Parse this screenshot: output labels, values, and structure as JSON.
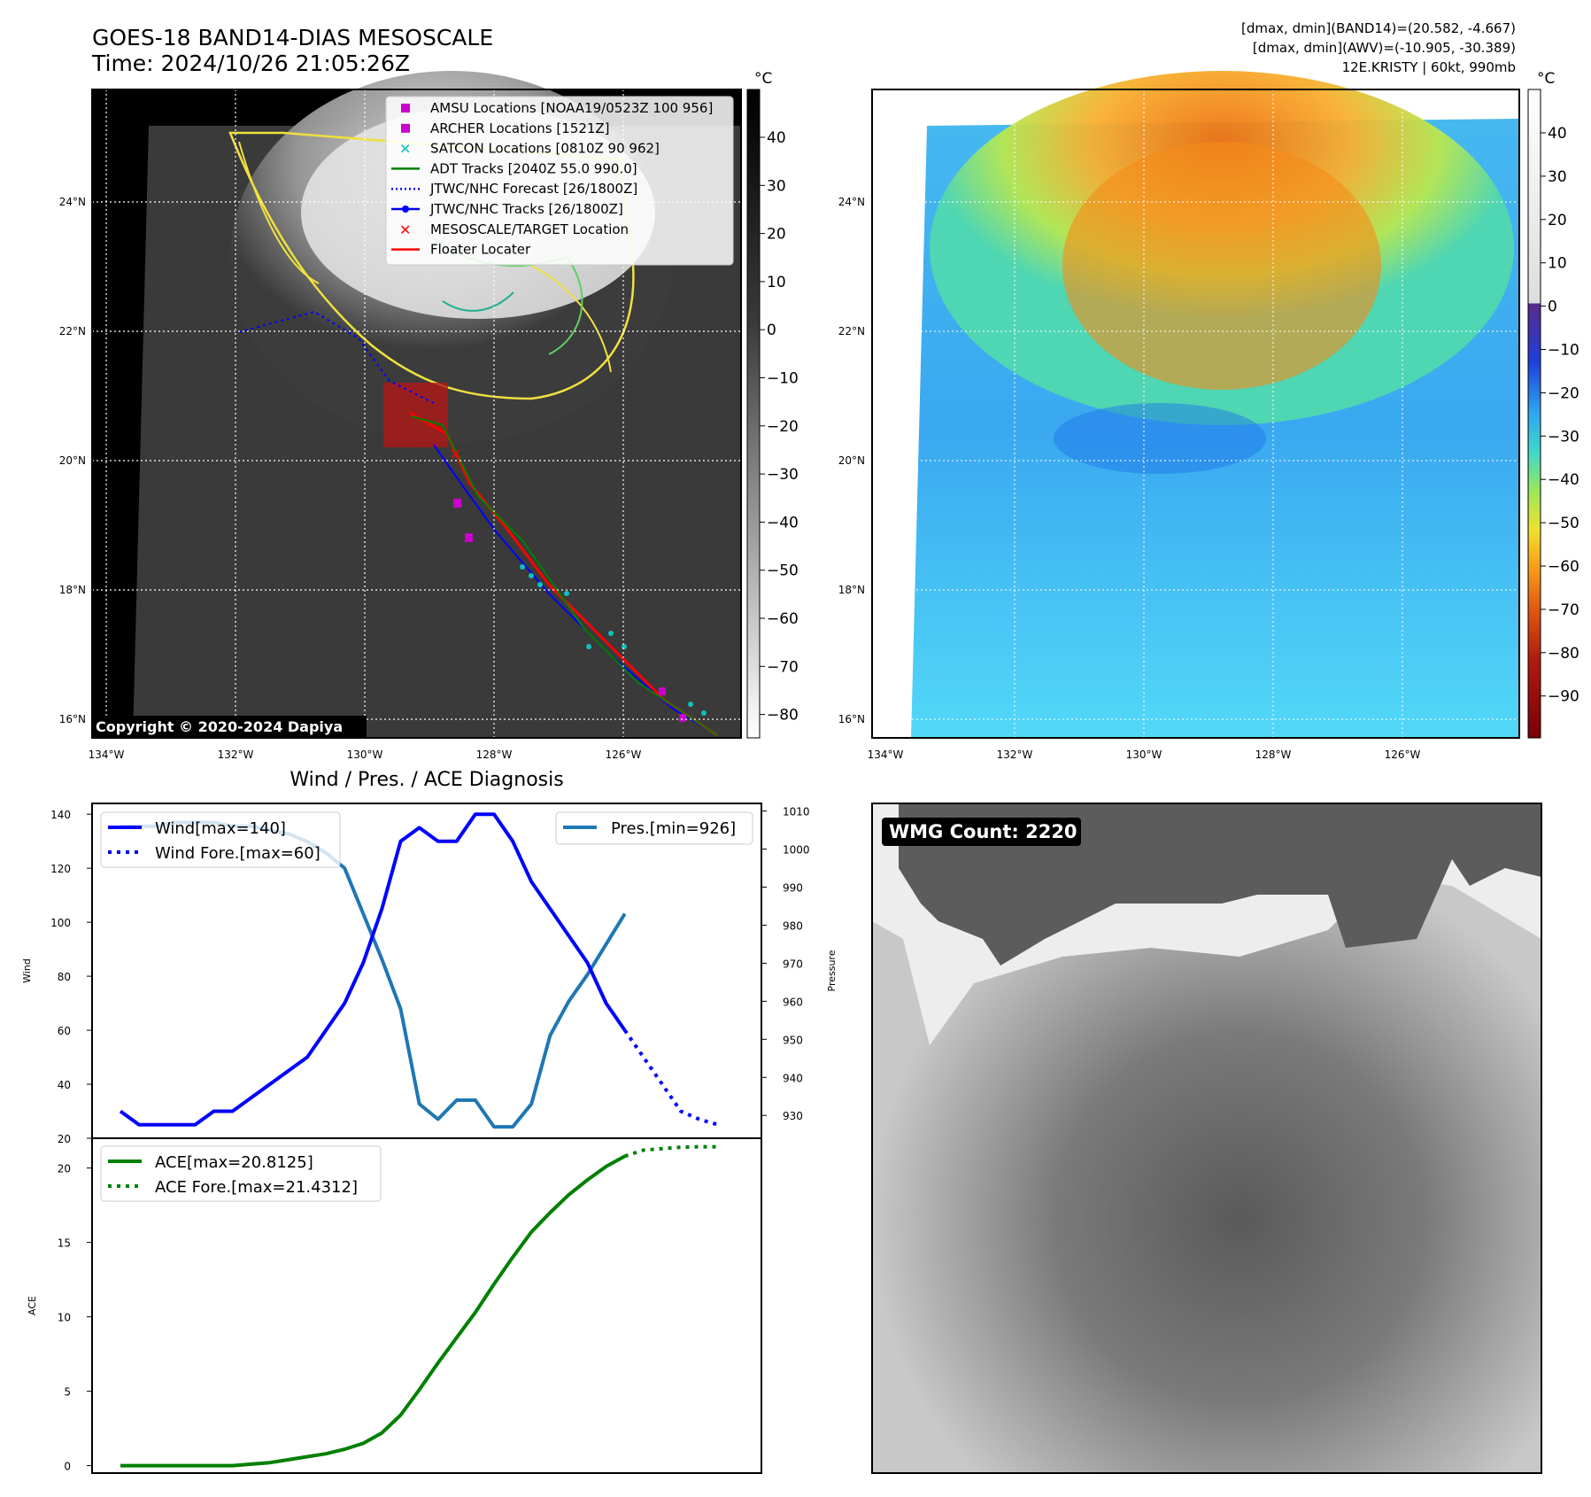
{
  "header": {
    "title_line1": "GOES-18 BAND14-DIAS MESOSCALE",
    "title_line2": "Time: 2024/10/26 21:05:26Z",
    "info_line1": "[dmax, dmin](BAND14)=(20.582, -4.667)",
    "info_line2": "[dmax, dmin](AWV)=(-10.905, -30.389)",
    "info_line3": "12E.KRISTY | 60kt, 990mb"
  },
  "map": {
    "lat_labels": [
      "24°N",
      "22°N",
      "20°N",
      "18°N",
      "16°N"
    ],
    "lon_labels": [
      "134°W",
      "132°W",
      "130°W",
      "128°W",
      "126°W"
    ],
    "copyright": "Copyright © 2020-2024 Dapiya"
  },
  "legend": {
    "items": [
      {
        "label": "AMSU Locations [NOAA19/0523Z 100 956]",
        "color": "#cc00cc",
        "marker": "square"
      },
      {
        "label": "ARCHER Locations [1521Z]",
        "color": "#cc00cc",
        "marker": "square"
      },
      {
        "label": "SATCON Locations [0810Z 90 962]",
        "color": "#10c0c0",
        "marker": "x"
      },
      {
        "label": "ADT Tracks [2040Z 55.0 990.0]",
        "color": "#008000",
        "marker": "line"
      },
      {
        "label": "JTWC/NHC Forecast [26/1800Z]",
        "color": "#0000ff",
        "marker": "dotted"
      },
      {
        "label": "JTWC/NHC Tracks [26/1800Z]",
        "color": "#0000ff",
        "marker": "line-dot"
      },
      {
        "label": "MESOSCALE/TARGET Location",
        "color": "#ff0000",
        "marker": "x"
      },
      {
        "label": "Floater Locater",
        "color": "#ff0000",
        "marker": "line"
      }
    ]
  },
  "colorbar_left": {
    "unit": "°C",
    "ticks": [
      "40",
      "30",
      "20",
      "10",
      "0",
      "−10",
      "−20",
      "−30",
      "−40",
      "−50",
      "−60",
      "−70",
      "−80"
    ]
  },
  "colorbar_right": {
    "unit": "°C",
    "ticks": [
      "40",
      "30",
      "20",
      "10",
      "0",
      "−10",
      "−20",
      "−30",
      "−40",
      "−50",
      "−60",
      "−70",
      "−80",
      "−90"
    ]
  },
  "wmg": {
    "label": "WMG Count: 2220"
  },
  "chart_data": [
    {
      "type": "line",
      "title": "Wind / Pres. / ACE Diagnosis",
      "ylabel": "Wind",
      "ylabel_right": "Pressure",
      "ylim": [
        20,
        144
      ],
      "ylim_right": [
        924,
        1012
      ],
      "yticks": [
        20,
        40,
        60,
        80,
        100,
        120,
        140
      ],
      "yticks_right": [
        930,
        940,
        950,
        960,
        970,
        980,
        990,
        1000,
        1010
      ],
      "series": [
        {
          "name": "Wind[max=140]",
          "color": "#0000ff",
          "style": "solid",
          "x": [
            0,
            1,
            2,
            3,
            4,
            5,
            6,
            7,
            8,
            9,
            10,
            11,
            12,
            13,
            14,
            15,
            16,
            17,
            18,
            19,
            20,
            21,
            22,
            23,
            24,
            25,
            26,
            27
          ],
          "values": [
            30,
            25,
            25,
            25,
            25,
            30,
            30,
            35,
            40,
            45,
            50,
            60,
            70,
            85,
            105,
            130,
            135,
            130,
            130,
            140,
            140,
            130,
            115,
            105,
            95,
            85,
            70,
            60
          ]
        },
        {
          "name": "Wind Fore.[max=60]",
          "color": "#0000ff",
          "style": "dotted",
          "x": [
            27,
            28,
            29,
            30,
            31,
            32
          ],
          "values": [
            60,
            50,
            40,
            30,
            27,
            25
          ]
        },
        {
          "name": "Pres.[min=926]",
          "color": "#1f77b4",
          "style": "solid",
          "axis": "right",
          "x": [
            0,
            1,
            2,
            3,
            4,
            5,
            6,
            7,
            8,
            9,
            10,
            11,
            12,
            13,
            14,
            15,
            16,
            17,
            18,
            19,
            20,
            21,
            22,
            23,
            24,
            25,
            26,
            27
          ],
          "values": [
            1006,
            1006,
            1006,
            1007,
            1007,
            1007,
            1006,
            1006,
            1005,
            1004,
            1002,
            999,
            995,
            983,
            971,
            958,
            933,
            929,
            934,
            934,
            927,
            927,
            933,
            951,
            960,
            967,
            975,
            983
          ]
        }
      ]
    },
    {
      "type": "line",
      "ylabel": "ACE",
      "ylim": [
        -0.5,
        22
      ],
      "yticks": [
        0,
        5,
        10,
        15,
        20
      ],
      "series": [
        {
          "name": "ACE[max=20.8125]",
          "color": "#008000",
          "style": "solid",
          "x": [
            0,
            1,
            2,
            3,
            4,
            5,
            6,
            7,
            8,
            9,
            10,
            11,
            12,
            13,
            14,
            15,
            16,
            17,
            18,
            19,
            20,
            21,
            22,
            23,
            24,
            25,
            26,
            27
          ],
          "values": [
            0,
            0,
            0,
            0,
            0,
            0,
            0,
            0.1,
            0.2,
            0.4,
            0.6,
            0.8,
            1.1,
            1.5,
            2.2,
            3.4,
            5.1,
            6.9,
            8.6,
            10.3,
            12.2,
            14.0,
            15.7,
            17.0,
            18.2,
            19.2,
            20.1,
            20.8
          ]
        },
        {
          "name": "ACE Fore.[max=21.4312]",
          "color": "#008000",
          "style": "dotted",
          "x": [
            27,
            28,
            29,
            30,
            31,
            32
          ],
          "values": [
            20.8,
            21.2,
            21.3,
            21.4,
            21.43,
            21.43
          ]
        }
      ]
    }
  ]
}
